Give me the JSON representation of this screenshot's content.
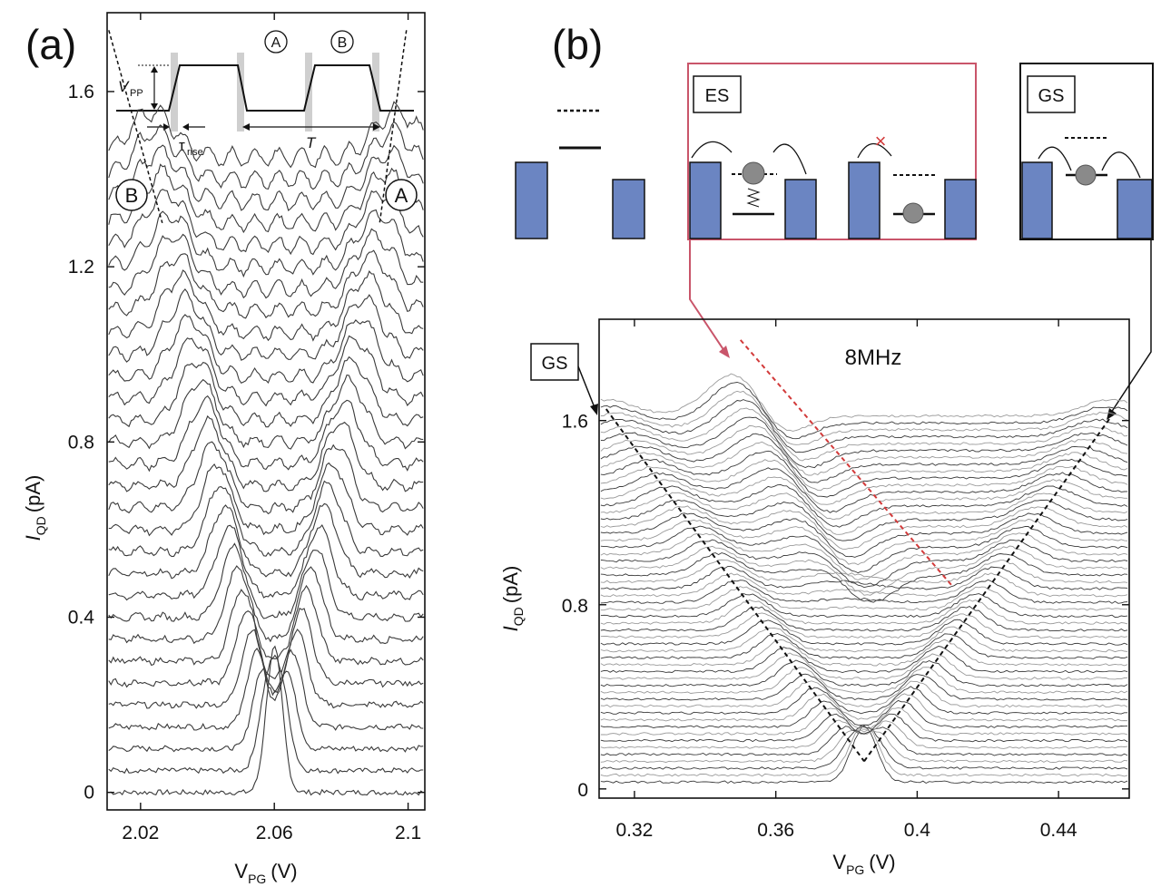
{
  "colors": {
    "trace": "#3a3a3a",
    "trace_light": "#9a9a9a",
    "barrier": "#6b85c2",
    "es_box": "#c9556a",
    "dash_red": "#d23a3a",
    "dash_black": "#111111"
  },
  "chart_data": [
    {
      "panel_label": "(a)",
      "type": "line",
      "xlabel": "V",
      "xlabel_sub": "PG",
      "xlabel_unit": "(V)",
      "ylabel": "I",
      "ylabel_sub": "QD",
      "ylabel_unit": "(pA)",
      "xlim": [
        2.01,
        2.105
      ],
      "ylim": [
        -0.04,
        1.78
      ],
      "xticks": [
        2.02,
        2.06,
        2.1
      ],
      "xtick_labels": [
        "2.02",
        "2.06",
        "2.1"
      ],
      "yticks": [
        0,
        0.4,
        0.8,
        1.2,
        1.6
      ],
      "ytick_labels": [
        "0",
        "0.4",
        "0.8",
        "1.2",
        "1.6"
      ],
      "n_traces": 30,
      "trace_offset_pA": 0.05,
      "peak_amplitude_pA": 0.33,
      "center_V": 2.06,
      "max_splitting_V": 0.073,
      "peak_labels": [
        "B",
        "A"
      ],
      "inset": {
        "state_labels": [
          "A",
          "B"
        ],
        "vpp_label": "V",
        "vpp_sub": "PP",
        "rise_label": "τ",
        "rise_sub": "rise",
        "period_label": "T"
      }
    },
    {
      "panel_label": "(b)",
      "type": "line",
      "title": "8MHz",
      "xlabel": "V",
      "xlabel_sub": "PG",
      "xlabel_unit": "(V)",
      "ylabel": "I",
      "ylabel_sub": "QD",
      "ylabel_unit": "(pA)",
      "xlim": [
        0.31,
        0.46
      ],
      "ylim": [
        -0.04,
        2.04
      ],
      "xticks": [
        0.32,
        0.36,
        0.4,
        0.44
      ],
      "xtick_labels": [
        "0.32",
        "0.36",
        "0.4",
        "0.44"
      ],
      "yticks": [
        0,
        0.8,
        1.6
      ],
      "ytick_labels": [
        "0",
        "0.8",
        "1.6"
      ],
      "n_traces": 54,
      "trace_offset_pA": 0.03,
      "gs_apex_V": 0.385,
      "gs_left_line": [
        [
          0.312,
          1.65
        ],
        [
          0.385,
          0.12
        ]
      ],
      "gs_right_line": [
        [
          0.385,
          0.12
        ],
        [
          0.455,
          1.62
        ]
      ],
      "es_line": [
        [
          0.35,
          1.95
        ],
        [
          0.41,
          0.88
        ]
      ],
      "schematics": {
        "es_label": "ES",
        "gs_label": "GS",
        "gs_callout": "GS"
      }
    }
  ]
}
